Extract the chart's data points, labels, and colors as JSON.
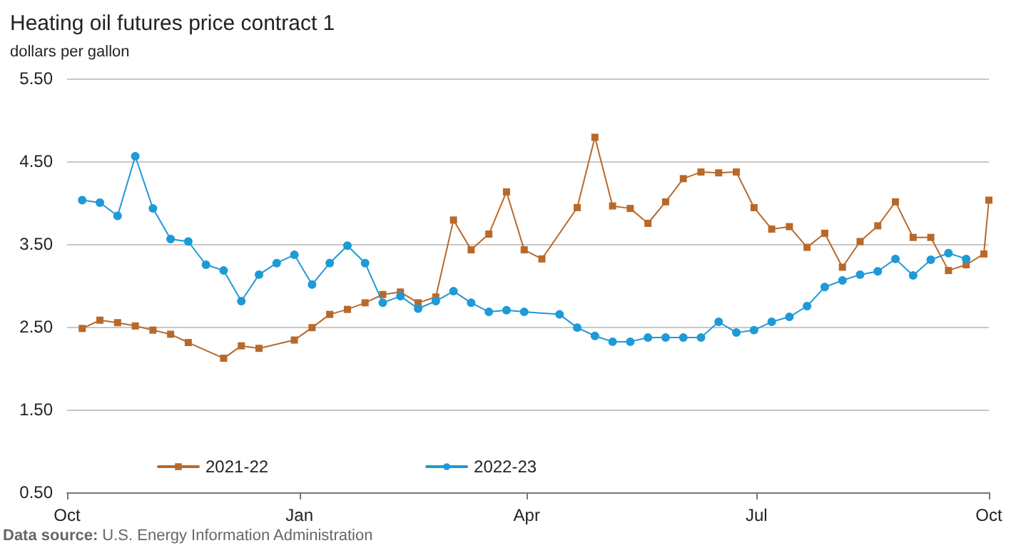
{
  "chart_data": {
    "type": "line",
    "title": "Heating oil futures price contract 1",
    "ylabel": "dollars per gallon",
    "annotations": [
      "Data source: U.S. Energy Information Administration"
    ],
    "xlim": [
      "2021-10-01",
      "2022-10-01"
    ],
    "xticks": [
      {
        "value": "2021-10-01",
        "label": "Oct"
      },
      {
        "value": "2022-01-01",
        "label": "Jan"
      },
      {
        "value": "2022-04-01",
        "label": "Apr"
      },
      {
        "value": "2022-07-01",
        "label": "Jul"
      },
      {
        "value": "2022-10-01",
        "label": "Oct"
      }
    ],
    "ylim": [
      0.5,
      5.5
    ],
    "yticks": [
      {
        "value": 0.5,
        "label": "0.50"
      },
      {
        "value": 1.5,
        "label": "1.50"
      },
      {
        "value": 2.5,
        "label": "2.50"
      },
      {
        "value": 3.5,
        "label": "3.50"
      },
      {
        "value": 4.5,
        "label": "4.50"
      },
      {
        "value": 5.5,
        "label": "5.50"
      }
    ],
    "grid": "y",
    "legend": "bottom left",
    "line_style": "solid",
    "series": [
      {
        "name": "2021-22",
        "color": "#b8692a",
        "marker": "square",
        "x": [
          "2021-10-07",
          "2021-10-14",
          "2021-10-21",
          "2021-10-28",
          "2021-11-04",
          "2021-11-11",
          "2021-11-18",
          "2021-12-02",
          "2021-12-09",
          "2021-12-16",
          "2021-12-30",
          "2022-01-06",
          "2022-01-13",
          "2022-01-20",
          "2022-01-27",
          "2022-02-03",
          "2022-02-10",
          "2022-02-17",
          "2022-02-24",
          "2022-03-03",
          "2022-03-10",
          "2022-03-17",
          "2022-03-24",
          "2022-03-31",
          "2022-04-07",
          "2022-04-21",
          "2022-04-28",
          "2022-05-05",
          "2022-05-12",
          "2022-05-19",
          "2022-05-26",
          "2022-06-02",
          "2022-06-09",
          "2022-06-16",
          "2022-06-23",
          "2022-06-30",
          "2022-07-07",
          "2022-07-14",
          "2022-07-21",
          "2022-07-28",
          "2022-08-04",
          "2022-08-11",
          "2022-08-18",
          "2022-08-25",
          "2022-09-01",
          "2022-09-08",
          "2022-09-15",
          "2022-09-22",
          "2022-09-29",
          "2022-10-01"
        ],
        "values": [
          2.48,
          2.58,
          2.55,
          2.51,
          2.46,
          2.41,
          2.31,
          2.12,
          2.27,
          2.24,
          2.34,
          2.49,
          2.65,
          2.71,
          2.79,
          2.89,
          2.92,
          2.79,
          2.86,
          3.79,
          3.43,
          3.62,
          4.13,
          3.43,
          3.32,
          3.94,
          4.79,
          3.96,
          3.93,
          3.75,
          4.01,
          4.29,
          4.37,
          4.36,
          4.37,
          3.94,
          3.68,
          3.71,
          3.46,
          3.63,
          3.22,
          3.53,
          3.72,
          4.01,
          3.58,
          3.58,
          3.18,
          3.25,
          3.38,
          4.03
        ]
      },
      {
        "name": "2022-23",
        "color": "#1e9ad6",
        "marker": "circle",
        "x": [
          "2021-10-07",
          "2021-10-14",
          "2021-10-21",
          "2021-10-28",
          "2021-11-04",
          "2021-11-11",
          "2021-11-18",
          "2021-11-25",
          "2021-12-02",
          "2021-12-09",
          "2021-12-16",
          "2021-12-23",
          "2021-12-30",
          "2022-01-06",
          "2022-01-13",
          "2022-01-20",
          "2022-01-27",
          "2022-02-03",
          "2022-02-10",
          "2022-02-17",
          "2022-02-24",
          "2022-03-03",
          "2022-03-10",
          "2022-03-17",
          "2022-03-24",
          "2022-03-31",
          "2022-04-14",
          "2022-04-21",
          "2022-04-28",
          "2022-05-05",
          "2022-05-12",
          "2022-05-19",
          "2022-05-26",
          "2022-06-02",
          "2022-06-09",
          "2022-06-16",
          "2022-06-23",
          "2022-06-30",
          "2022-07-07",
          "2022-07-14",
          "2022-07-21",
          "2022-07-28",
          "2022-08-04",
          "2022-08-11",
          "2022-08-18",
          "2022-08-25",
          "2022-09-01",
          "2022-09-08",
          "2022-09-15",
          "2022-09-22"
        ],
        "values": [
          4.03,
          4.0,
          3.84,
          4.56,
          3.93,
          3.56,
          3.53,
          3.25,
          3.18,
          2.81,
          3.13,
          3.27,
          3.37,
          3.01,
          3.27,
          3.48,
          3.27,
          2.79,
          2.87,
          2.72,
          2.81,
          2.93,
          2.79,
          2.68,
          2.7,
          2.68,
          2.65,
          2.49,
          2.39,
          2.32,
          2.32,
          2.37,
          2.37,
          2.37,
          2.37,
          2.56,
          2.43,
          2.46,
          2.56,
          2.62,
          2.75,
          2.98,
          3.06,
          3.13,
          3.17,
          3.32,
          3.12,
          3.31,
          3.39,
          3.32
        ]
      }
    ]
  }
}
